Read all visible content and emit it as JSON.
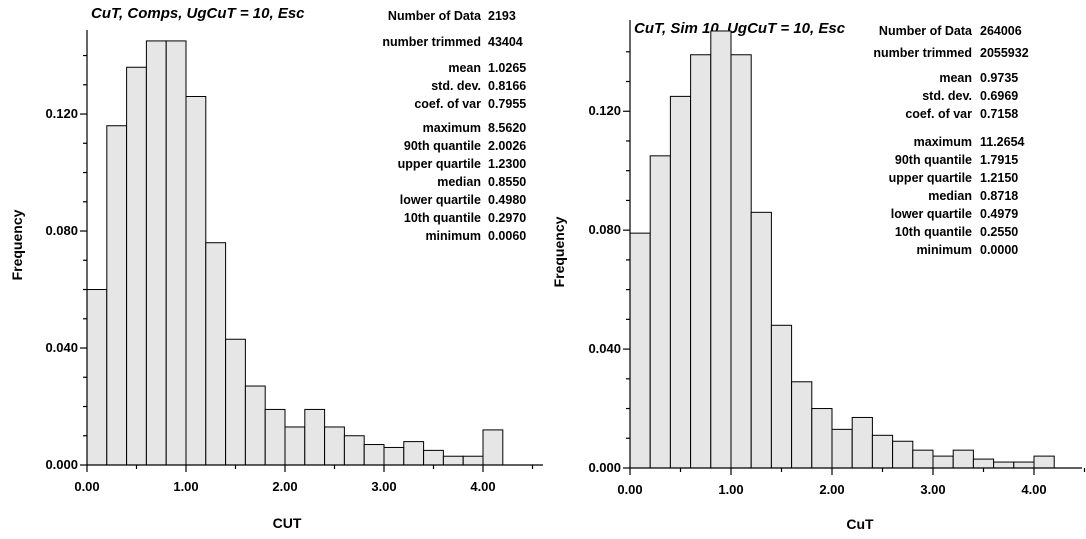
{
  "chart_data": [
    {
      "type": "bar",
      "title": "CuT, Comps, UgCuT = 10, Esc",
      "xlabel": "CUT",
      "ylabel": "Frequency",
      "xlim": [
        0,
        4.5
      ],
      "ylim": [
        0,
        0.146
      ],
      "xticks": [
        "0.00",
        "1.00",
        "2.00",
        "3.00",
        "4.00"
      ],
      "yticks": [
        "0.000",
        "0.040",
        "0.080",
        "0.120"
      ],
      "bin_width": 0.2,
      "bin_starts": [
        0.0,
        0.2,
        0.4,
        0.6,
        0.8,
        1.0,
        1.2,
        1.4,
        1.6,
        1.8,
        2.0,
        2.2,
        2.4,
        2.6,
        2.8,
        3.0,
        3.2,
        3.4,
        3.6,
        3.8,
        4.0
      ],
      "values": [
        0.06,
        0.116,
        0.136,
        0.145,
        0.145,
        0.126,
        0.076,
        0.043,
        0.027,
        0.019,
        0.013,
        0.019,
        0.013,
        0.01,
        0.007,
        0.006,
        0.008,
        0.005,
        0.003,
        0.003,
        0.012
      ],
      "stats": [
        {
          "label": "Number of Data",
          "value": "2193"
        },
        {
          "label": "number trimmed",
          "value": "43404"
        },
        {
          "label": "mean",
          "value": "1.0265"
        },
        {
          "label": "std. dev.",
          "value": "0.8166"
        },
        {
          "label": "coef. of var",
          "value": "0.7955"
        },
        {
          "label": "maximum",
          "value": "8.5620"
        },
        {
          "label": "90th quantile",
          "value": "2.0026"
        },
        {
          "label": "upper quartile",
          "value": "1.2300"
        },
        {
          "label": "median",
          "value": "0.8550"
        },
        {
          "label": "lower quartile",
          "value": "0.4980"
        },
        {
          "label": "10th quantile",
          "value": "0.2970"
        },
        {
          "label": "minimum",
          "value": "0.0060"
        }
      ]
    },
    {
      "type": "bar",
      "title": "CuT, Sim 10, UgCuT = 10, Esc",
      "xlabel": "CuT",
      "ylabel": "Frequency",
      "xlim": [
        0,
        4.5
      ],
      "ylim": [
        0,
        0.148
      ],
      "xticks": [
        "0.00",
        "1.00",
        "2.00",
        "3.00",
        "4.00"
      ],
      "yticks": [
        "0.000",
        "0.040",
        "0.080",
        "0.120"
      ],
      "bin_width": 0.2,
      "bin_starts": [
        0.0,
        0.2,
        0.4,
        0.6,
        0.8,
        1.0,
        1.2,
        1.4,
        1.6,
        1.8,
        2.0,
        2.2,
        2.4,
        2.6,
        2.8,
        3.0,
        3.2,
        3.4,
        3.6,
        3.8,
        4.0
      ],
      "values": [
        0.079,
        0.105,
        0.125,
        0.139,
        0.147,
        0.139,
        0.086,
        0.048,
        0.029,
        0.02,
        0.013,
        0.017,
        0.011,
        0.009,
        0.006,
        0.004,
        0.006,
        0.003,
        0.002,
        0.002,
        0.004
      ],
      "stats": [
        {
          "label": "Number of Data",
          "value": "264006"
        },
        {
          "label": "number trimmed",
          "value": "2055932"
        },
        {
          "label": "mean",
          "value": "0.9735"
        },
        {
          "label": "std. dev.",
          "value": "0.6969"
        },
        {
          "label": "coef. of var",
          "value": "0.7158"
        },
        {
          "label": "maximum",
          "value": "11.2654"
        },
        {
          "label": "90th quantile",
          "value": "1.7915"
        },
        {
          "label": "upper quartile",
          "value": "1.2150"
        },
        {
          "label": "median",
          "value": "0.8718"
        },
        {
          "label": "lower quartile",
          "value": "0.4979"
        },
        {
          "label": "10th quantile",
          "value": "0.2550"
        },
        {
          "label": "minimum",
          "value": "0.0000"
        }
      ]
    }
  ]
}
